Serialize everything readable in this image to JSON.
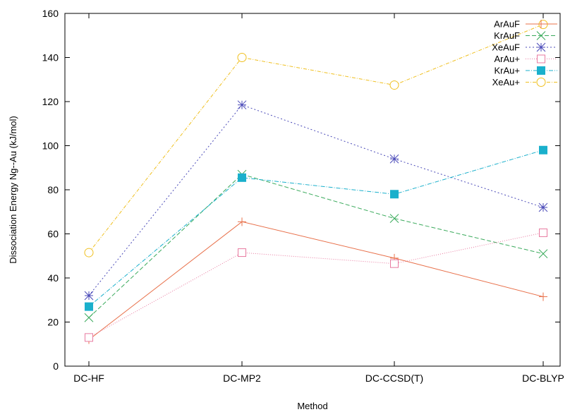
{
  "chart_data": {
    "type": "line",
    "title": "",
    "xlabel": "Method",
    "ylabel": "Dissociation Energy Ng--Au (kJ/mol)",
    "categories": [
      "DC-HF",
      "DC-MP2",
      "DC-CCSD(T)",
      "DC-BLYP"
    ],
    "ylim": [
      0,
      160
    ],
    "yticks": [
      "0",
      "20",
      "40",
      "60",
      "80",
      "100",
      "120",
      "140",
      "160"
    ],
    "grid": false,
    "legend_position": "top-right",
    "series": [
      {
        "name": "ArAuF",
        "values": [
          12,
          65.5,
          49,
          31.5
        ],
        "color": "#e8704a",
        "dash": "",
        "marker": "plus"
      },
      {
        "name": "KrAuF",
        "values": [
          22,
          87,
          67,
          51
        ],
        "color": "#3aaa5c",
        "dash": "6,3",
        "marker": "x"
      },
      {
        "name": "XeAuF",
        "values": [
          32,
          118.5,
          94,
          72
        ],
        "color": "#4a4ab8",
        "dash": "2,3",
        "marker": "star"
      },
      {
        "name": "ArAu+",
        "values": [
          13,
          51.5,
          46.5,
          60.5
        ],
        "color": "#e87aa0",
        "dash": "1,2",
        "marker": "square-open"
      },
      {
        "name": "KrAu+",
        "values": [
          27,
          85.5,
          78,
          98
        ],
        "color": "#1ab0cc",
        "dash": "6,2,1,2",
        "marker": "square-filled"
      },
      {
        "name": "XeAu+",
        "values": [
          51.5,
          140,
          127.5,
          155
        ],
        "color": "#f0c020",
        "dash": "5,2,1,2",
        "marker": "circle-open"
      }
    ]
  }
}
